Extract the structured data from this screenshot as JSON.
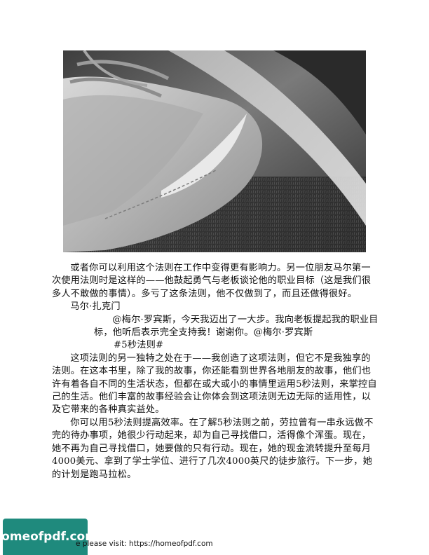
{
  "photo": {
    "description_icon": "sneaker-photo"
  },
  "paragraphs": [
    "或者你可以利用这个法则在工作中变得更有影响力。另一位朋友马尔第一次使用法则时是这样的——他鼓起勇气与老板谈论他的职业目标（这是我们很多人不敢做的事情）。多亏了这条法则，他不仅做到了，而且还做得很好。",
    "马尔·扎克门",
    "@梅尔·罗宾斯，今天我迈出了一大步。我向老板提起我的职业目标，他听后表示完全支持我！谢谢你。@梅尔·罗宾斯",
    "#5秒法则#",
    "这项法则的另一独特之处在于——我创造了这项法则，但它不是我独享的法则。在这本书里，除了我的故事，你还能看到世界各地朋友的故事，他们也许有着各自不同的生活状态，但都在或大或小的事情里运用5秒法则，来掌控自己的生活。他们丰富的故事经验会让你体会到这项法则无边无际的适用性，以及它带来的各种真实益处。",
    "你可以用5秒法则提高效率。在了解5秒法则之前，劳拉曾有一串永远做不完的待办事项，她很少行动起来，却为自己寻找借口，活得像个浑蛋。现在，她不再为自己寻找借口，她要做的只有行动。现在，她的现金流转提升至每月4000美元、拿到了学士学位、进行了几次4000英尺的徒步旅行。下一步，她的计划是跑马拉松。"
  ],
  "watermark": {
    "badge": "homeofpdf.com",
    "footer_text": "e please visit: https://homeofpdf.com"
  }
}
